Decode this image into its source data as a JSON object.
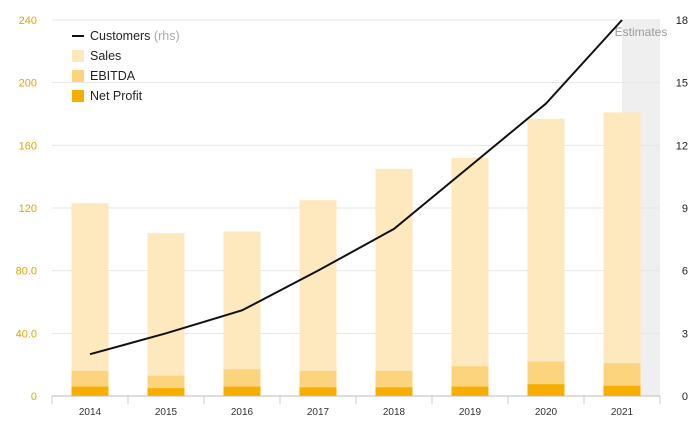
{
  "chart_data": {
    "type": "bar",
    "categories": [
      "2014",
      "2015",
      "2016",
      "2017",
      "2018",
      "2019",
      "2020",
      "2021"
    ],
    "series": [
      {
        "name": "Sales",
        "type": "bar",
        "axis": "left",
        "color": "#fde9bd",
        "values": [
          123,
          104,
          105,
          125,
          145,
          152,
          177,
          181
        ]
      },
      {
        "name": "EBITDA",
        "type": "bar",
        "axis": "left",
        "color": "#fcd47e",
        "values": [
          16,
          13,
          17,
          16,
          16,
          19,
          22,
          21
        ]
      },
      {
        "name": "Net Profit",
        "type": "bar",
        "axis": "left",
        "color": "#f7ae00",
        "values": [
          6,
          5,
          6,
          5.5,
          5.5,
          6,
          7.5,
          6.5
        ]
      },
      {
        "name": "Customers",
        "name_suffix": "(rhs)",
        "type": "line",
        "axis": "right",
        "color": "#111111",
        "estimate_color": "#aaaaaa",
        "values": [
          2,
          3,
          4.1,
          6,
          8,
          11,
          14,
          18
        ]
      }
    ],
    "estimates": {
      "label": "Estimates",
      "from_category": "2020.5"
    },
    "y_left": {
      "ticks": [
        "0",
        "40.0",
        "80.0",
        "120",
        "160",
        "200",
        "240"
      ],
      "ylim": [
        0,
        240
      ],
      "color": "#e8a200"
    },
    "y_right": {
      "ticks": [
        "0",
        "3",
        "6",
        "9",
        "12",
        "15",
        "18"
      ],
      "ylim": [
        0,
        18
      ]
    },
    "legend_position": "top-left",
    "grid": "horizontal"
  }
}
